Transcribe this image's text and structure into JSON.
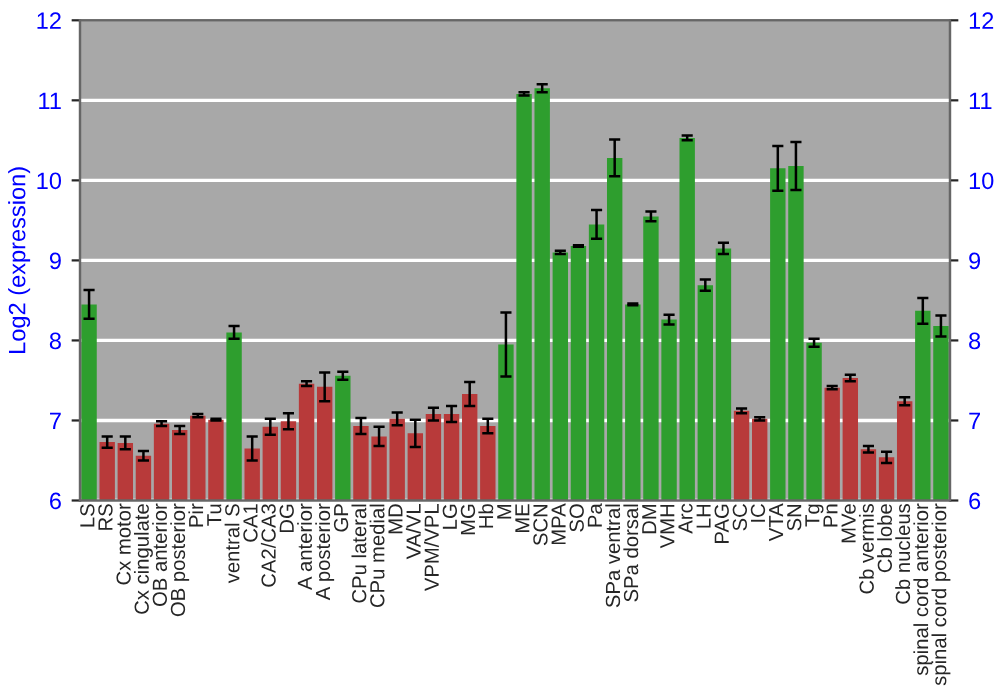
{
  "chart_data": {
    "type": "bar",
    "ylabel": "Log2 (expression)",
    "categories": [
      "LS",
      "RS",
      "Cx motor",
      "Cx cingulate",
      "OB anterior",
      "OB posterior",
      "Pir",
      "Tu",
      "ventral S",
      "CA1",
      "CA2/CA3",
      "DG",
      "A anterior",
      "A posterior",
      "GP",
      "CPu lateral",
      "CPu medial",
      "MD",
      "VA/VL",
      "VPM/VPL",
      "LG",
      "MG",
      "Hb",
      "M",
      "ME",
      "SCN",
      "MPA",
      "SO",
      "Pa",
      "SPa ventral",
      "SPa dorsal",
      "DM",
      "VMH",
      "Arc",
      "LH",
      "PAG",
      "SC",
      "IC",
      "VTA",
      "SN",
      "Tg",
      "Pn",
      "MVe",
      "Cb vermis",
      "Cb lobe",
      "Cb nucleus",
      "spinal cord anterior",
      "spinal cord posterior"
    ],
    "values": [
      8.45,
      6.73,
      6.72,
      6.56,
      6.96,
      6.88,
      7.06,
      7.01,
      8.1,
      6.65,
      6.92,
      6.99,
      7.46,
      7.42,
      7.56,
      6.93,
      6.8,
      7.02,
      6.84,
      7.08,
      7.08,
      7.33,
      6.93,
      7.95,
      11.08,
      11.15,
      9.1,
      9.18,
      9.45,
      10.28,
      8.45,
      9.55,
      8.26,
      10.53,
      8.69,
      9.15,
      7.12,
      7.02,
      10.15,
      10.18,
      7.97,
      7.41,
      7.53,
      6.64,
      6.54,
      7.24,
      8.37,
      8.18
    ],
    "errors": [
      0.18,
      0.07,
      0.08,
      0.06,
      0.03,
      0.05,
      0.02,
      0.01,
      0.08,
      0.15,
      0.1,
      0.1,
      0.03,
      0.18,
      0.05,
      0.1,
      0.12,
      0.08,
      0.17,
      0.08,
      0.1,
      0.15,
      0.09,
      0.4,
      0.02,
      0.05,
      0.02,
      0.01,
      0.18,
      0.23,
      0.01,
      0.06,
      0.06,
      0.03,
      0.07,
      0.07,
      0.03,
      0.02,
      0.28,
      0.3,
      0.05,
      0.02,
      0.04,
      0.04,
      0.07,
      0.05,
      0.16,
      0.13
    ],
    "colors": [
      "#2e9e2e",
      "#b83a3a",
      "#b83a3a",
      "#b83a3a",
      "#b83a3a",
      "#b83a3a",
      "#b83a3a",
      "#b83a3a",
      "#2e9e2e",
      "#b83a3a",
      "#b83a3a",
      "#b83a3a",
      "#b83a3a",
      "#b83a3a",
      "#2e9e2e",
      "#b83a3a",
      "#b83a3a",
      "#b83a3a",
      "#b83a3a",
      "#b83a3a",
      "#b83a3a",
      "#b83a3a",
      "#b83a3a",
      "#2e9e2e",
      "#2e9e2e",
      "#2e9e2e",
      "#2e9e2e",
      "#2e9e2e",
      "#2e9e2e",
      "#2e9e2e",
      "#2e9e2e",
      "#2e9e2e",
      "#2e9e2e",
      "#2e9e2e",
      "#2e9e2e",
      "#2e9e2e",
      "#b83a3a",
      "#b83a3a",
      "#2e9e2e",
      "#2e9e2e",
      "#2e9e2e",
      "#b83a3a",
      "#b83a3a",
      "#b83a3a",
      "#b83a3a",
      "#b83a3a",
      "#2e9e2e",
      "#2e9e2e"
    ],
    "ylim": [
      6,
      12
    ],
    "yticks": [
      6,
      7,
      8,
      9,
      10,
      11,
      12
    ],
    "y2lim": [
      6,
      12
    ],
    "y2ticks": [
      6,
      7,
      8,
      9,
      10,
      11,
      12
    ],
    "grid": "y"
  }
}
